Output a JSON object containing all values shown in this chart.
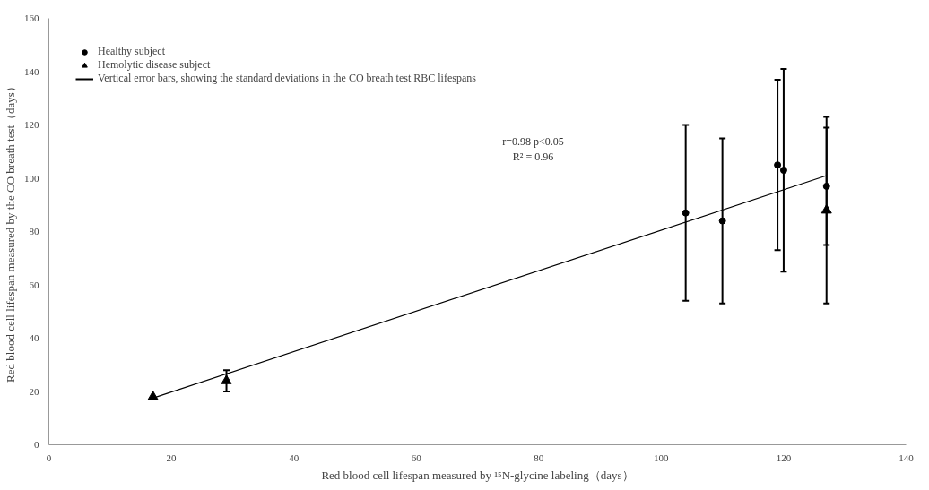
{
  "chart_data": {
    "type": "scatter",
    "xlabel": "Red blood cell lifespan measured by ¹⁵N-glycine labeling（days）",
    "ylabel": "Red blood cell lifespan measured by the CO breath test（days）",
    "xlim": [
      0,
      140
    ],
    "xticks": [
      0,
      20,
      40,
      60,
      80,
      100,
      120,
      140
    ],
    "ylim": [
      0,
      160
    ],
    "yticks": [
      0,
      20,
      40,
      60,
      80,
      100,
      120,
      140,
      160
    ],
    "grid": false,
    "legend": "top left",
    "series": [
      {
        "name": "Healthy subject",
        "color": "#000000",
        "marker": "circle",
        "x": [
          104,
          110,
          119,
          120,
          127
        ],
        "values": [
          87,
          84,
          105,
          103,
          97
        ],
        "errors": [
          [
            54,
            120
          ],
          [
            53,
            115
          ],
          [
            73,
            137
          ],
          [
            65,
            141
          ],
          [
            75,
            119
          ]
        ]
      },
      {
        "name": "Hemolytic disease subject",
        "color": "#000000",
        "marker": "triangle",
        "x": [
          17,
          29,
          127
        ],
        "values": [
          18,
          24,
          88
        ],
        "errors": [
          null,
          [
            20,
            28
          ],
          [
            53,
            123
          ]
        ]
      },
      {
        "type": "line",
        "color": "#000000",
        "x": [
          17,
          127
        ],
        "values": [
          17.5,
          101
        ]
      }
    ],
    "annotations": [
      "Vertical error bars, showing the standard deviations in the CO breath test RBC lifespans",
      "r=0.98 p<0.05\nR² = 0.96"
    ]
  }
}
